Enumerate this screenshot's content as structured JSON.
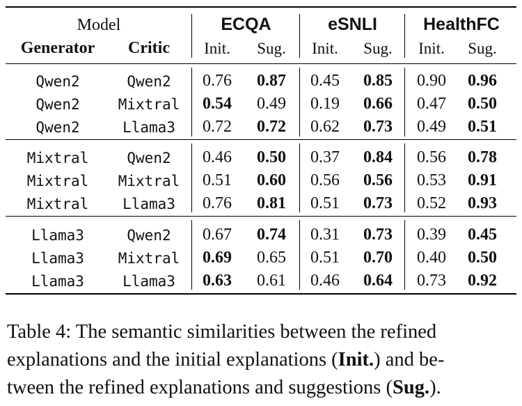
{
  "table": {
    "header": {
      "model_label": "Model",
      "generator_label": "Generator",
      "critic_label": "Critic",
      "datasets": [
        "ECQA",
        "eSNLI",
        "HealthFC"
      ],
      "init_label": "Init.",
      "sug_label": "Sug."
    },
    "groups": [
      {
        "rows": [
          {
            "generator": "Qwen2",
            "critic": "Qwen2",
            "values": [
              {
                "v": "0.76",
                "bold": false
              },
              {
                "v": "0.87",
                "bold": true
              },
              {
                "v": "0.45",
                "bold": false
              },
              {
                "v": "0.85",
                "bold": true
              },
              {
                "v": "0.90",
                "bold": false
              },
              {
                "v": "0.96",
                "bold": true
              }
            ]
          },
          {
            "generator": "Qwen2",
            "critic": "Mixtral",
            "values": [
              {
                "v": "0.54",
                "bold": true
              },
              {
                "v": "0.49",
                "bold": false
              },
              {
                "v": "0.19",
                "bold": false
              },
              {
                "v": "0.66",
                "bold": true
              },
              {
                "v": "0.47",
                "bold": false
              },
              {
                "v": "0.50",
                "bold": true
              }
            ]
          },
          {
            "generator": "Qwen2",
            "critic": "Llama3",
            "values": [
              {
                "v": "0.72",
                "bold": false
              },
              {
                "v": "0.72",
                "bold": true
              },
              {
                "v": "0.62",
                "bold": false
              },
              {
                "v": "0.73",
                "bold": true
              },
              {
                "v": "0.49",
                "bold": false
              },
              {
                "v": "0.51",
                "bold": true
              }
            ]
          }
        ]
      },
      {
        "rows": [
          {
            "generator": "Mixtral",
            "critic": "Qwen2",
            "values": [
              {
                "v": "0.46",
                "bold": false
              },
              {
                "v": "0.50",
                "bold": true
              },
              {
                "v": "0.37",
                "bold": false
              },
              {
                "v": "0.84",
                "bold": true
              },
              {
                "v": "0.56",
                "bold": false
              },
              {
                "v": "0.78",
                "bold": true
              }
            ]
          },
          {
            "generator": "Mixtral",
            "critic": "Mixtral",
            "values": [
              {
                "v": "0.51",
                "bold": false
              },
              {
                "v": "0.60",
                "bold": true
              },
              {
                "v": "0.56",
                "bold": false
              },
              {
                "v": "0.56",
                "bold": true
              },
              {
                "v": "0.53",
                "bold": false
              },
              {
                "v": "0.91",
                "bold": true
              }
            ]
          },
          {
            "generator": "Mixtral",
            "critic": "Llama3",
            "values": [
              {
                "v": "0.76",
                "bold": false
              },
              {
                "v": "0.81",
                "bold": true
              },
              {
                "v": "0.51",
                "bold": false
              },
              {
                "v": "0.73",
                "bold": true
              },
              {
                "v": "0.52",
                "bold": false
              },
              {
                "v": "0.93",
                "bold": true
              }
            ]
          }
        ]
      },
      {
        "rows": [
          {
            "generator": "Llama3",
            "critic": "Qwen2",
            "values": [
              {
                "v": "0.67",
                "bold": false
              },
              {
                "v": "0.74",
                "bold": true
              },
              {
                "v": "0.31",
                "bold": false
              },
              {
                "v": "0.73",
                "bold": true
              },
              {
                "v": "0.39",
                "bold": false
              },
              {
                "v": "0.45",
                "bold": true
              }
            ]
          },
          {
            "generator": "Llama3",
            "critic": "Mixtral",
            "values": [
              {
                "v": "0.69",
                "bold": true
              },
              {
                "v": "0.65",
                "bold": false
              },
              {
                "v": "0.51",
                "bold": false
              },
              {
                "v": "0.70",
                "bold": true
              },
              {
                "v": "0.40",
                "bold": false
              },
              {
                "v": "0.50",
                "bold": true
              }
            ]
          },
          {
            "generator": "Llama3",
            "critic": "Llama3",
            "values": [
              {
                "v": "0.63",
                "bold": true
              },
              {
                "v": "0.61",
                "bold": false
              },
              {
                "v": "0.46",
                "bold": false
              },
              {
                "v": "0.64",
                "bold": true
              },
              {
                "v": "0.73",
                "bold": false
              },
              {
                "v": "0.92",
                "bold": true
              }
            ]
          }
        ]
      }
    ]
  },
  "caption": {
    "line1": "Table 4: The semantic similarities between the refined",
    "line2_pre": "explanations and the initial explanations (",
    "line2_bold": "Init.",
    "line2_post": ") and be-",
    "line3_pre": "tween the refined explanations and suggestions (",
    "line3_bold": "Sug.",
    "line3_post": ")."
  }
}
